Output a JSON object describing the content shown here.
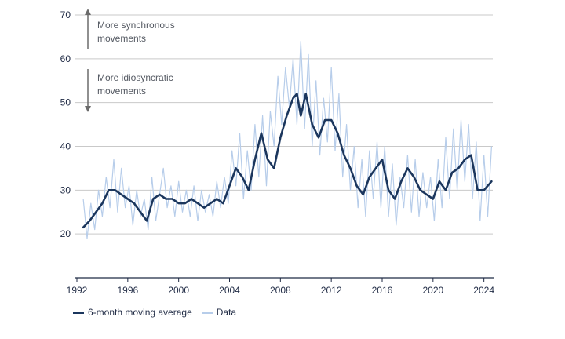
{
  "chart_data": {
    "type": "line",
    "title": "",
    "xlabel": "",
    "ylabel": "",
    "xlim": [
      1992,
      2024.7
    ],
    "ylim": [
      10,
      70
    ],
    "grid": true,
    "x_ticks": [
      "1992",
      "1996",
      "2000",
      "2004",
      "2008",
      "2012",
      "2016",
      "2020",
      "2024"
    ],
    "y_ticks": [
      "20",
      "30",
      "40",
      "50",
      "60",
      "70"
    ],
    "legend_position": "bottom-left",
    "annotations": {
      "up": "More synchronous movements",
      "up_lines": [
        "More synchronous",
        "movements"
      ],
      "down": "More idiosyncratic movements",
      "down_lines": [
        "More idiosyncratic",
        "movements"
      ]
    },
    "colors": {
      "moving_average": "#1b365d",
      "data": "#b7cdea",
      "grid": "#c9c9c9",
      "arrow": "#6b6b6b"
    },
    "series": [
      {
        "name": "6-month moving average",
        "x": [
          1992.5,
          1993.0,
          1993.5,
          1994.0,
          1994.5,
          1995.0,
          1995.5,
          1996.0,
          1996.5,
          1997.0,
          1997.5,
          1998.0,
          1998.5,
          1999.0,
          1999.5,
          2000.0,
          2000.5,
          2001.0,
          2001.5,
          2002.0,
          2002.5,
          2003.0,
          2003.5,
          2004.0,
          2004.5,
          2005.0,
          2005.5,
          2006.0,
          2006.5,
          2007.0,
          2007.5,
          2008.0,
          2008.5,
          2009.0,
          2009.3,
          2009.6,
          2010.0,
          2010.5,
          2011.0,
          2011.5,
          2012.0,
          2012.5,
          2013.0,
          2013.5,
          2014.0,
          2014.5,
          2015.0,
          2015.5,
          2016.0,
          2016.5,
          2017.0,
          2017.5,
          2018.0,
          2018.5,
          2019.0,
          2019.5,
          2020.0,
          2020.5,
          2021.0,
          2021.5,
          2022.0,
          2022.5,
          2023.0,
          2023.5,
          2024.0,
          2024.6
        ],
        "values": [
          21.5,
          23,
          25,
          27,
          30,
          30,
          29,
          28,
          27,
          25,
          23,
          28,
          29,
          28,
          28,
          27,
          27,
          28,
          27,
          26,
          27,
          28,
          27,
          31,
          35,
          33,
          30,
          37,
          43,
          37,
          35,
          42,
          47,
          51,
          52,
          47,
          52,
          45,
          42,
          46,
          46,
          43,
          38,
          35,
          31,
          29,
          33,
          35,
          37,
          30,
          28,
          32,
          35,
          33,
          30,
          29,
          28,
          32,
          30,
          34,
          35,
          37,
          38,
          30,
          30,
          32
        ]
      },
      {
        "name": "Data",
        "x": [
          1992.5,
          1992.8,
          1993.1,
          1993.4,
          1993.7,
          1994.0,
          1994.3,
          1994.6,
          1994.9,
          1995.2,
          1995.5,
          1995.8,
          1996.1,
          1996.4,
          1996.7,
          1997.0,
          1997.3,
          1997.6,
          1997.9,
          1998.2,
          1998.5,
          1998.8,
          1999.1,
          1999.4,
          1999.7,
          2000.0,
          2000.3,
          2000.6,
          2000.9,
          2001.2,
          2001.5,
          2001.8,
          2002.1,
          2002.4,
          2002.7,
          2003.0,
          2003.3,
          2003.6,
          2003.9,
          2004.2,
          2004.5,
          2004.8,
          2005.1,
          2005.4,
          2005.7,
          2006.0,
          2006.3,
          2006.6,
          2006.9,
          2007.2,
          2007.5,
          2007.8,
          2008.1,
          2008.4,
          2008.7,
          2009.0,
          2009.3,
          2009.6,
          2009.9,
          2010.2,
          2010.5,
          2010.8,
          2011.1,
          2011.4,
          2011.7,
          2012.0,
          2012.3,
          2012.6,
          2012.9,
          2013.2,
          2013.5,
          2013.8,
          2014.1,
          2014.4,
          2014.7,
          2015.0,
          2015.3,
          2015.6,
          2015.9,
          2016.2,
          2016.5,
          2016.8,
          2017.1,
          2017.4,
          2017.7,
          2018.0,
          2018.3,
          2018.6,
          2018.9,
          2019.2,
          2019.5,
          2019.8,
          2020.1,
          2020.4,
          2020.7,
          2021.0,
          2021.3,
          2021.6,
          2021.9,
          2022.2,
          2022.5,
          2022.8,
          2023.1,
          2023.4,
          2023.7,
          2024.0,
          2024.3,
          2024.6
        ],
        "values": [
          28,
          19,
          27,
          21,
          30,
          24,
          33,
          26,
          37,
          25,
          35,
          26,
          31,
          22,
          30,
          24,
          28,
          21,
          33,
          23,
          29,
          35,
          26,
          31,
          24,
          32,
          25,
          30,
          24,
          31,
          23,
          30,
          25,
          29,
          24,
          32,
          26,
          33,
          27,
          39,
          31,
          43,
          28,
          39,
          30,
          45,
          33,
          47,
          31,
          48,
          40,
          56,
          45,
          58,
          49,
          60,
          45,
          64,
          44,
          61,
          40,
          55,
          38,
          51,
          41,
          58,
          39,
          52,
          33,
          45,
          30,
          40,
          26,
          37,
          24,
          39,
          28,
          41,
          26,
          40,
          24,
          36,
          22,
          33,
          26,
          38,
          25,
          37,
          24,
          34,
          26,
          33,
          23,
          37,
          26,
          42,
          28,
          44,
          30,
          46,
          32,
          45,
          28,
          41,
          23,
          38,
          24,
          40
        ]
      }
    ]
  }
}
